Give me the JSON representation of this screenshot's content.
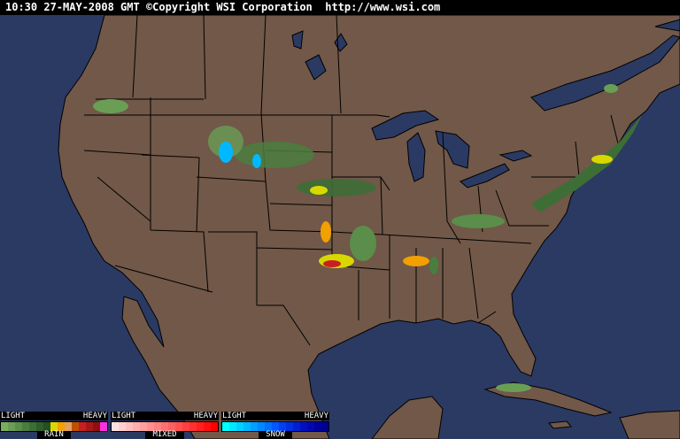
{
  "header": {
    "text": "10:30 27-MAY-2008 GMT ©Copyright WSI Corporation  http://www.wsi.com"
  },
  "colors": {
    "ocean": "#2b3a63",
    "land": "#715848",
    "border": "#000000"
  },
  "legend": [
    {
      "name": "RAIN",
      "light": "LIGHT",
      "heavy": "HEAVY",
      "colors": [
        "#7aae5f",
        "#6a9e55",
        "#5a8e4a",
        "#4a7e40",
        "#3d6e36",
        "#2f5e2c",
        "#245022",
        "#d8d800",
        "#f2a000",
        "#e0a060",
        "#c05000",
        "#c82020",
        "#a81818",
        "#901010",
        "#ff30e0"
      ]
    },
    {
      "name": "MIXED",
      "light": "LIGHT",
      "heavy": "HEAVY",
      "colors": [
        "#ffe0e0",
        "#ffd0d0",
        "#ffc0c0",
        "#ffb0b0",
        "#ffa0a0",
        "#ff9090",
        "#ff8080",
        "#ff7070",
        "#ff6060",
        "#ff5050",
        "#ff4040",
        "#ff3030",
        "#ff2020",
        "#ff1010",
        "#ff0000"
      ]
    },
    {
      "name": "SNOW",
      "light": "LIGHT",
      "heavy": "HEAVY",
      "colors": [
        "#00ffff",
        "#00e8ff",
        "#00d0ff",
        "#00b8ff",
        "#00a0ff",
        "#0088ff",
        "#0070ff",
        "#0058ff",
        "#0040f0",
        "#0030e0",
        "#0020d0",
        "#0010c0",
        "#0008b0",
        "#0000a0",
        "#000090"
      ]
    }
  ]
}
